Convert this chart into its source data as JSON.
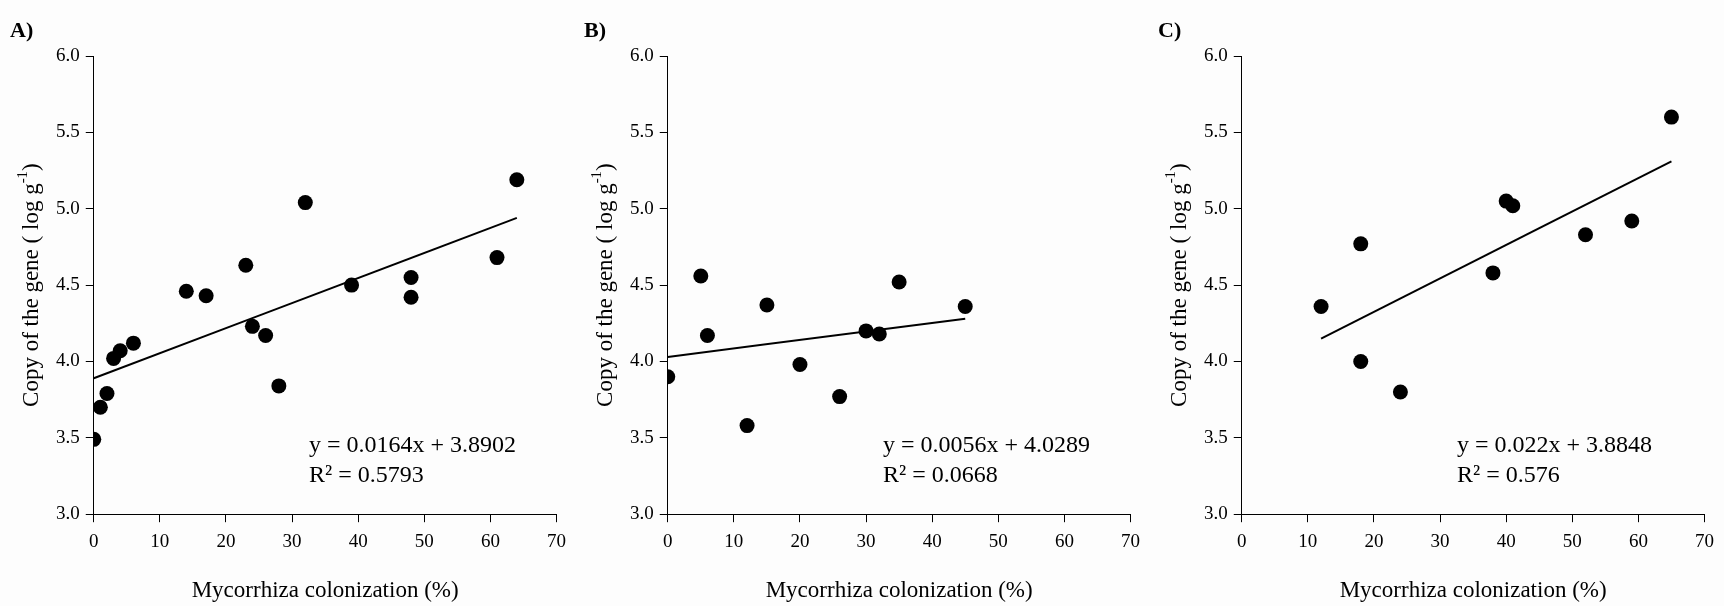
{
  "chart_data": [
    {
      "type": "scatter",
      "title": "A)",
      "xlabel": "Mycorrhiza colonization (%)",
      "ylabel": "Copy of the gene ( log g$^{-1}$)",
      "grid": false,
      "legend": false,
      "xlim": [
        0,
        70
      ],
      "xticks": [
        0,
        10,
        20,
        30,
        40,
        50,
        60,
        70
      ],
      "ylim": [
        3,
        6
      ],
      "yticks": [
        {
          "value": 3,
          "label": "3.0"
        },
        {
          "value": 3.5,
          "label": "3.5"
        },
        {
          "value": 4,
          "label": "4.0"
        },
        {
          "value": 4.5,
          "label": "4.5"
        },
        {
          "value": 5,
          "label": "5.0"
        },
        {
          "value": 5.5,
          "label": "5.5"
        },
        {
          "value": 6,
          "label": "6.0"
        }
      ],
      "annotations": [
        "y = 0.0164x + 3.8902",
        "R² = 0.5793"
      ],
      "series": [
        {
          "marker": "circle",
          "color": "#000000",
          "x": [
            0,
            1,
            2,
            3,
            4,
            6,
            14,
            17,
            23,
            24,
            26,
            28,
            32,
            39,
            48,
            48,
            61,
            64
          ],
          "values": [
            3.49,
            3.7,
            3.79,
            4.02,
            4.07,
            4.12,
            4.46,
            4.43,
            4.63,
            4.23,
            4.17,
            3.84,
            5.04,
            4.5,
            4.55,
            4.42,
            4.68,
            5.19
          ]
        },
        {
          "type": "line",
          "marker": "none",
          "color": "#000000",
          "x": [
            0,
            64
          ],
          "values": [
            3.89,
            4.94
          ]
        }
      ]
    },
    {
      "type": "scatter",
      "title": "B)",
      "xlabel": "Mycorrhiza colonization (%)",
      "ylabel": "Copy of the gene ( log g$^{-1}$)",
      "grid": false,
      "legend": false,
      "xlim": [
        0,
        70
      ],
      "xticks": [
        0,
        10,
        20,
        30,
        40,
        50,
        60,
        70
      ],
      "ylim": [
        3,
        6
      ],
      "yticks": [
        {
          "value": 3,
          "label": "3.0"
        },
        {
          "value": 3.5,
          "label": "3.5"
        },
        {
          "value": 4,
          "label": "4.0"
        },
        {
          "value": 4.5,
          "label": "4.5"
        },
        {
          "value": 5,
          "label": "5.0"
        },
        {
          "value": 5.5,
          "label": "5.5"
        },
        {
          "value": 6,
          "label": "6.0"
        }
      ],
      "annotations": [
        "y = 0.0056x + 4.0289",
        "R² = 0.0668"
      ],
      "series": [
        {
          "marker": "circle",
          "color": "#000000",
          "x": [
            0,
            5,
            6,
            12,
            15,
            20,
            26,
            30,
            32,
            35,
            45
          ],
          "values": [
            3.9,
            4.56,
            4.17,
            3.58,
            4.37,
            3.98,
            3.77,
            4.2,
            4.18,
            4.52,
            4.36
          ]
        },
        {
          "type": "line",
          "marker": "none",
          "color": "#000000",
          "x": [
            0,
            45
          ],
          "values": [
            4.03,
            4.28
          ]
        }
      ]
    },
    {
      "type": "scatter",
      "title": "C)",
      "xlabel": "Mycorrhiza colonization (%)",
      "ylabel": "Copy of the gene ( log g$^{-1}$)",
      "grid": false,
      "legend": false,
      "xlim": [
        0,
        70
      ],
      "xticks": [
        0,
        10,
        20,
        30,
        40,
        50,
        60,
        70
      ],
      "ylim": [
        3,
        6
      ],
      "yticks": [
        {
          "value": 3,
          "label": "3.0"
        },
        {
          "value": 3.5,
          "label": "3.5"
        },
        {
          "value": 4,
          "label": "4.0"
        },
        {
          "value": 4.5,
          "label": "4.5"
        },
        {
          "value": 5,
          "label": "5.0"
        },
        {
          "value": 5.5,
          "label": "5.5"
        },
        {
          "value": 6,
          "label": "6.0"
        }
      ],
      "annotations": [
        "y = 0.022x + 3.8848",
        "R² = 0.576"
      ],
      "series": [
        {
          "marker": "circle",
          "color": "#000000",
          "x": [
            12,
            18,
            18,
            24,
            38,
            40,
            41,
            52,
            59,
            65
          ],
          "values": [
            4.36,
            4.77,
            4.0,
            3.8,
            4.58,
            5.05,
            5.02,
            4.83,
            4.92,
            5.6
          ]
        },
        {
          "type": "line",
          "marker": "none",
          "color": "#000000",
          "x": [
            12,
            65
          ],
          "values": [
            4.15,
            5.31
          ]
        }
      ]
    }
  ]
}
